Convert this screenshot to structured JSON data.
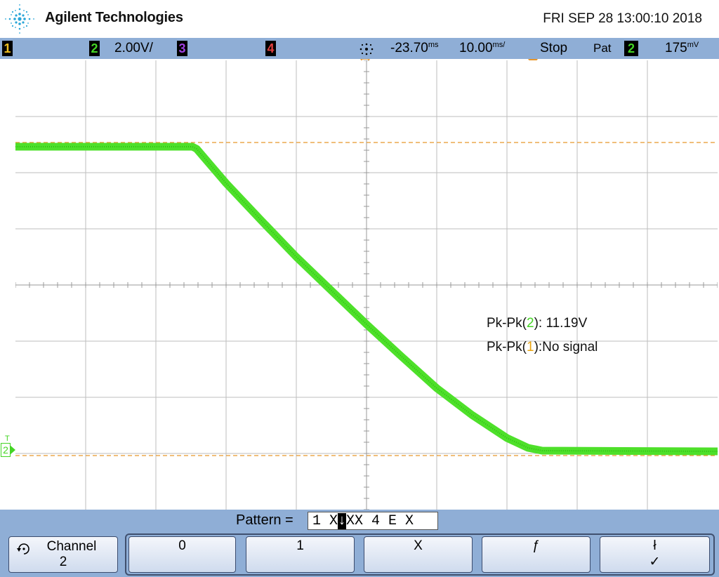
{
  "header": {
    "brand": "Agilent Technologies",
    "datetime": "FRI SEP 28 13:00:10 2018"
  },
  "status": {
    "ch1": "1",
    "ch2": "2",
    "ch2_scale": "2.00V/",
    "ch3": "3",
    "ch4": "4",
    "delay_value": "-23.70",
    "delay_unit": "ms",
    "timebase_value": "10.00",
    "timebase_unit": "ms/",
    "run_state": "Stop",
    "trigger_mode": "Pat",
    "trigger_source": "2",
    "trigger_level_value": "175",
    "trigger_level_unit": "mV",
    "colors": {
      "ch1": "#f0c020",
      "ch2": "#44d424",
      "ch3": "#a040e0",
      "ch4": "#e04040"
    }
  },
  "measurements": {
    "m1_prefix": "Pk-Pk(",
    "m1_channel": "2",
    "m1_suffix": "): 11.19V",
    "m2_prefix": "Pk-Pk(",
    "m2_channel": "1",
    "m2_suffix": "):No signal"
  },
  "grid_marker": {
    "trig_letter": "T",
    "channel": "2"
  },
  "softkeys": {
    "pattern_label": "Pattern =",
    "pattern_pre": "1 X",
    "pattern_selected": "↓",
    "pattern_post": "XX 4 E X",
    "channel_label": "Channel",
    "channel_value": "2",
    "key_0": "0",
    "key_1": "1",
    "key_x": "X",
    "key_rise": "ƒ",
    "key_fall": "ł",
    "key_check": "✓"
  }
}
